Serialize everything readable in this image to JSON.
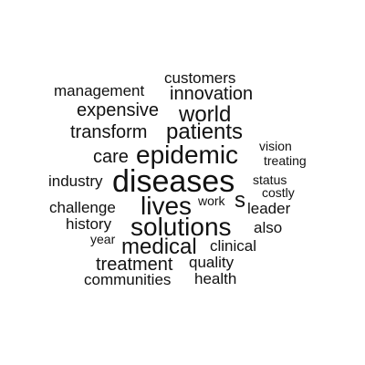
{
  "words": [
    {
      "text": "customers"
    },
    {
      "text": "management"
    },
    {
      "text": "innovation"
    },
    {
      "text": "expensive"
    },
    {
      "text": "world"
    },
    {
      "text": "transform"
    },
    {
      "text": "patients"
    },
    {
      "text": "vision"
    },
    {
      "text": "care"
    },
    {
      "text": "epidemic"
    },
    {
      "text": "treating"
    },
    {
      "text": "industry"
    },
    {
      "text": "diseases"
    },
    {
      "text": "status"
    },
    {
      "text": "costly"
    },
    {
      "text": "challenge"
    },
    {
      "text": "lives"
    },
    {
      "text": "work"
    },
    {
      "text": "s"
    },
    {
      "text": "leader"
    },
    {
      "text": "history"
    },
    {
      "text": "solutions"
    },
    {
      "text": "also"
    },
    {
      "text": "year"
    },
    {
      "text": "medical"
    },
    {
      "text": "clinical"
    },
    {
      "text": "treatment"
    },
    {
      "text": "quality"
    },
    {
      "text": "communities"
    },
    {
      "text": "health"
    }
  ]
}
